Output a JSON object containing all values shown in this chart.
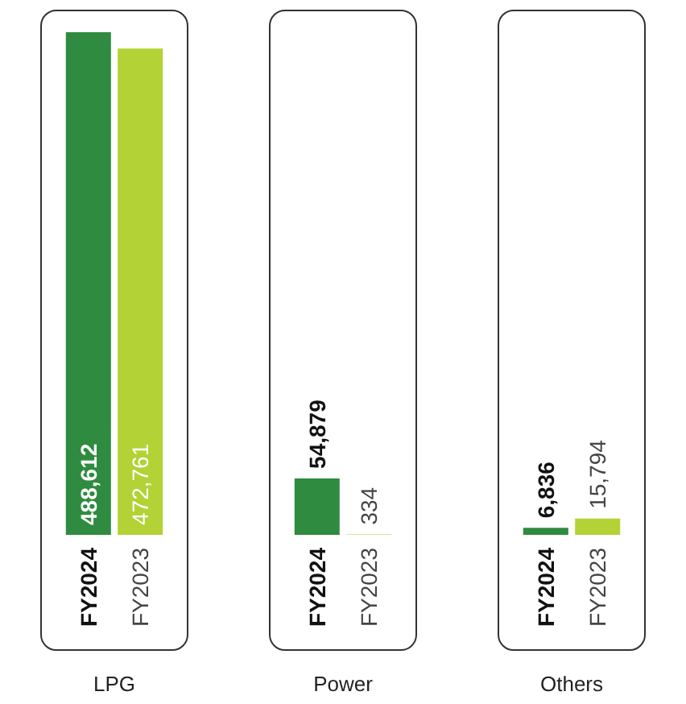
{
  "chart_data": {
    "type": "bar",
    "categories": [
      "LPG",
      "Power",
      "Others"
    ],
    "series": [
      {
        "name": "FY2024",
        "color": "#2e8b3f",
        "values": [
          488612,
          54879,
          6836
        ],
        "value_labels": [
          "488,612",
          "54,879",
          "6,836"
        ]
      },
      {
        "name": "FY2023",
        "color": "#b3d235",
        "values": [
          472761,
          334,
          15794
        ],
        "value_labels": [
          "472,761",
          "334",
          "15,794"
        ]
      }
    ],
    "legend": false
  }
}
